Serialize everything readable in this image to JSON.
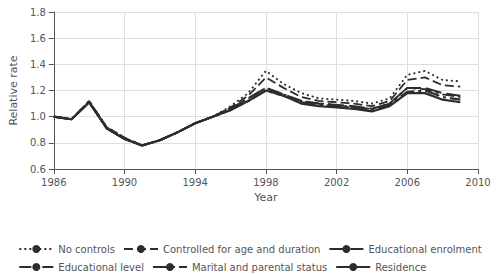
{
  "chart_data": {
    "type": "line",
    "x": [
      1986,
      1987,
      1988,
      1989,
      1990,
      1991,
      1992,
      1993,
      1994,
      1995,
      1996,
      1997,
      1998,
      1999,
      2000,
      2001,
      2002,
      2003,
      2004,
      2005,
      2006,
      2007,
      2008,
      2009
    ],
    "series": [
      {
        "name": "No controls",
        "line_style": "dotted",
        "values": [
          1.0,
          0.98,
          1.12,
          0.92,
          0.84,
          0.78,
          0.82,
          0.88,
          0.95,
          1.0,
          1.08,
          1.18,
          1.35,
          1.25,
          1.18,
          1.14,
          1.13,
          1.12,
          1.1,
          1.14,
          1.32,
          1.35,
          1.28,
          1.27
        ]
      },
      {
        "name": "Controlled for age and duration",
        "line_style": "dashed",
        "values": [
          1.0,
          0.98,
          1.12,
          0.92,
          0.84,
          0.78,
          0.82,
          0.88,
          0.95,
          1.0,
          1.07,
          1.16,
          1.3,
          1.22,
          1.15,
          1.12,
          1.11,
          1.1,
          1.08,
          1.12,
          1.28,
          1.3,
          1.24,
          1.23
        ]
      },
      {
        "name": "Educational enrolment",
        "line_style": "long-dashed",
        "values": [
          1.0,
          0.98,
          1.11,
          0.91,
          0.83,
          0.78,
          0.82,
          0.88,
          0.95,
          1.0,
          1.06,
          1.14,
          1.22,
          1.17,
          1.12,
          1.1,
          1.09,
          1.08,
          1.06,
          1.1,
          1.22,
          1.22,
          1.18,
          1.16
        ]
      },
      {
        "name": "Educational level",
        "line_style": "dash-dot",
        "values": [
          1.0,
          0.98,
          1.11,
          0.91,
          0.83,
          0.78,
          0.82,
          0.88,
          0.95,
          1.0,
          1.06,
          1.14,
          1.22,
          1.17,
          1.12,
          1.1,
          1.09,
          1.07,
          1.06,
          1.1,
          1.22,
          1.21,
          1.17,
          1.15
        ]
      },
      {
        "name": "Marital and parental status",
        "line_style": "long-dash-dot",
        "values": [
          1.0,
          0.98,
          1.11,
          0.91,
          0.83,
          0.78,
          0.82,
          0.88,
          0.95,
          1.0,
          1.05,
          1.12,
          1.2,
          1.16,
          1.11,
          1.09,
          1.08,
          1.07,
          1.05,
          1.09,
          1.19,
          1.2,
          1.15,
          1.13
        ]
      },
      {
        "name": "Residence",
        "line_style": "solid",
        "values": [
          1.0,
          0.98,
          1.11,
          0.91,
          0.83,
          0.78,
          0.82,
          0.88,
          0.95,
          1.0,
          1.05,
          1.12,
          1.2,
          1.16,
          1.1,
          1.08,
          1.07,
          1.06,
          1.04,
          1.08,
          1.18,
          1.18,
          1.13,
          1.11
        ]
      }
    ],
    "color": "#2d2d2d",
    "xlim": [
      1986,
      2010
    ],
    "xticks": [
      1986,
      1990,
      1994,
      1998,
      2002,
      2006,
      2010
    ],
    "ylim": [
      0.6,
      1.8
    ],
    "yticks": [
      0.6,
      0.8,
      {
        "value": 1.0,
        "label": "1.0"
      },
      1.2,
      1.4,
      1.6,
      1.8
    ],
    "xlabel": "Year",
    "ylabel": "Relative rate",
    "grid": true,
    "legend": "bottom"
  }
}
